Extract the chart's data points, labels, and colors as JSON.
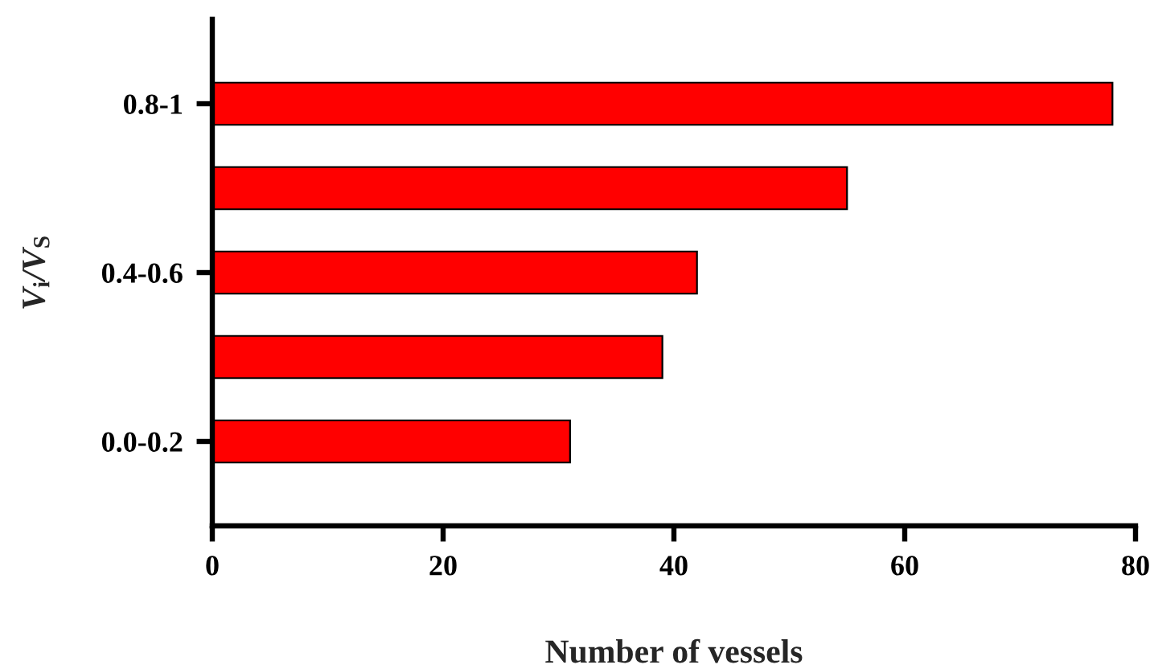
{
  "chart_data": {
    "type": "bar",
    "orientation": "horizontal",
    "categories": [
      "0.8-1",
      null,
      "0.4-0.6",
      null,
      "0.0-0.2"
    ],
    "values": [
      78,
      55,
      42,
      39,
      31
    ],
    "color": "#ff0000",
    "xlim": [
      0,
      80
    ],
    "xticks": [
      0,
      20,
      40,
      60,
      80
    ],
    "xlabel": "Number of vessels",
    "ylabel": "V$_{i}$/V$_{S}$",
    "grid": false
  }
}
